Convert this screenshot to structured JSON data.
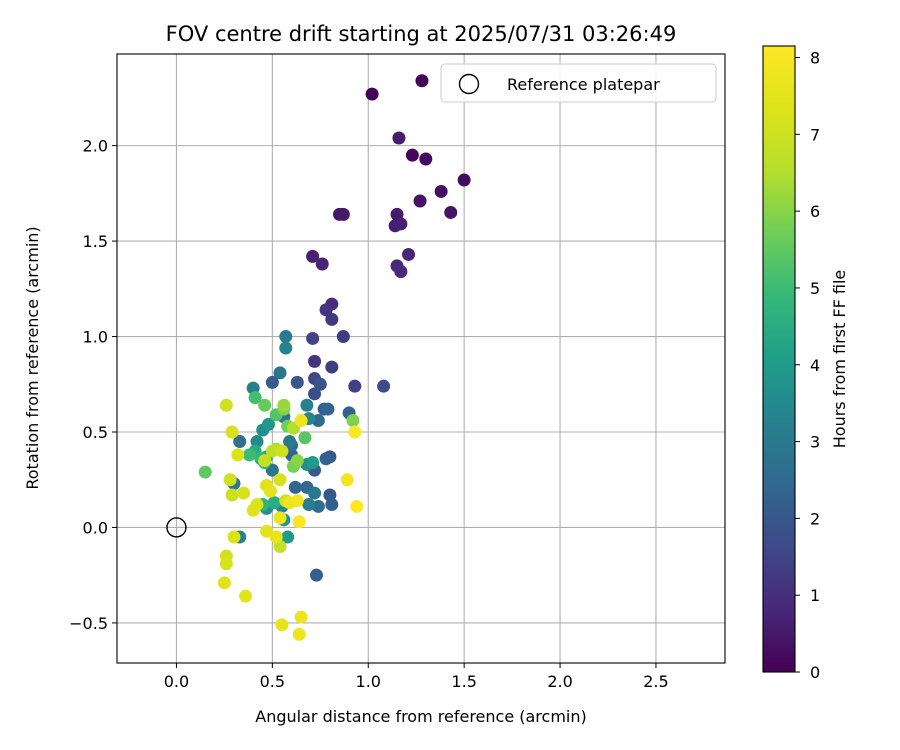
{
  "chart_data": {
    "type": "scatter",
    "title": "FOV centre drift starting at 2025/07/31 03:26:49",
    "xlabel": "Angular distance from reference (arcmin)",
    "ylabel": "Rotation from reference (arcmin)",
    "xlim": [
      -0.31,
      2.86
    ],
    "ylim": [
      -0.71,
      2.48
    ],
    "xticks": [
      0.0,
      0.5,
      1.0,
      1.5,
      2.0,
      2.5
    ],
    "xtick_labels": [
      "0.0",
      "0.5",
      "1.0",
      "1.5",
      "2.0",
      "2.5"
    ],
    "yticks": [
      -0.5,
      0.0,
      0.5,
      1.0,
      1.5,
      2.0
    ],
    "ytick_labels": [
      "−0.5",
      "0.0",
      "0.5",
      "1.0",
      "1.5",
      "2.0"
    ],
    "grid": true,
    "legend": {
      "placement": "top-right",
      "entries": [
        {
          "label": "Reference platepar",
          "marker": "open-circle"
        }
      ]
    },
    "reference_point": [
      0.0,
      0.0
    ],
    "colormap": "viridis",
    "colorbar": {
      "label": "Hours from first FF file",
      "range": [
        0,
        8.15
      ],
      "ticks": [
        0,
        1,
        2,
        3,
        4,
        5,
        6,
        7,
        8
      ],
      "tick_labels": [
        "0",
        "1",
        "2",
        "3",
        "4",
        "5",
        "6",
        "7",
        "8"
      ]
    },
    "points": [
      [
        1.02,
        2.27,
        0.05
      ],
      [
        1.28,
        2.34,
        0.1
      ],
      [
        1.16,
        2.04,
        0.6
      ],
      [
        1.23,
        1.95,
        0.15
      ],
      [
        1.3,
        1.93,
        0.2
      ],
      [
        1.5,
        1.82,
        0.25
      ],
      [
        1.38,
        1.76,
        0.3
      ],
      [
        1.27,
        1.71,
        0.35
      ],
      [
        1.43,
        1.65,
        0.4
      ],
      [
        0.85,
        1.64,
        0.45
      ],
      [
        0.87,
        1.64,
        0.5
      ],
      [
        1.15,
        1.64,
        0.55
      ],
      [
        1.14,
        1.58,
        0.6
      ],
      [
        1.17,
        1.59,
        0.65
      ],
      [
        0.71,
        1.42,
        0.7
      ],
      [
        0.76,
        1.38,
        0.75
      ],
      [
        1.21,
        1.43,
        0.8
      ],
      [
        1.15,
        1.37,
        0.85
      ],
      [
        1.17,
        1.34,
        0.9
      ],
      [
        0.81,
        1.17,
        1.0
      ],
      [
        0.78,
        1.14,
        1.1
      ],
      [
        0.81,
        1.09,
        1.2
      ],
      [
        0.87,
        1.0,
        1.3
      ],
      [
        0.71,
        0.99,
        1.5
      ],
      [
        0.72,
        0.87,
        1.1
      ],
      [
        0.81,
        0.84,
        1.3
      ],
      [
        0.72,
        0.78,
        1.6
      ],
      [
        0.93,
        0.74,
        1.4
      ],
      [
        1.08,
        0.74,
        1.7
      ],
      [
        0.75,
        0.75,
        1.9
      ],
      [
        0.72,
        0.7,
        1.8
      ],
      [
        0.63,
        0.76,
        2.0
      ],
      [
        0.5,
        0.76,
        2.1
      ],
      [
        0.54,
        0.81,
        2.8
      ],
      [
        0.57,
        1.0,
        3.0
      ],
      [
        0.57,
        0.94,
        3.3
      ],
      [
        0.4,
        0.73,
        3.1
      ],
      [
        0.77,
        0.62,
        2.2
      ],
      [
        0.79,
        0.62,
        2.4
      ],
      [
        0.9,
        0.6,
        2.3
      ],
      [
        0.74,
        0.56,
        2.5
      ],
      [
        0.68,
        0.64,
        3.2
      ],
      [
        0.69,
        0.57,
        3.4
      ],
      [
        0.56,
        0.58,
        2.9
      ],
      [
        0.59,
        0.45,
        3.0
      ],
      [
        0.33,
        0.45,
        2.7
      ],
      [
        0.42,
        0.45,
        3.5
      ],
      [
        0.45,
        0.51,
        3.7
      ],
      [
        0.48,
        0.54,
        3.9
      ],
      [
        0.6,
        0.43,
        2.6
      ],
      [
        0.8,
        0.37,
        2.0
      ],
      [
        0.78,
        0.36,
        2.2
      ],
      [
        0.72,
        0.3,
        2.1
      ],
      [
        0.6,
        0.38,
        2.3
      ],
      [
        0.71,
        0.34,
        4.0
      ],
      [
        0.68,
        0.33,
        3.6
      ],
      [
        0.5,
        0.3,
        2.8
      ],
      [
        0.68,
        0.21,
        2.5
      ],
      [
        0.62,
        0.21,
        2.4
      ],
      [
        0.72,
        0.18,
        3.0
      ],
      [
        0.8,
        0.17,
        2.0
      ],
      [
        0.81,
        0.12,
        2.2
      ],
      [
        0.74,
        0.11,
        2.6
      ],
      [
        0.69,
        0.12,
        3.1
      ],
      [
        0.55,
        0.11,
        3.4
      ],
      [
        0.47,
        0.1,
        3.7
      ],
      [
        0.3,
        0.23,
        2.9
      ],
      [
        0.33,
        -0.05,
        3.2
      ],
      [
        0.73,
        -0.25,
        2.2
      ],
      [
        0.58,
        -0.05,
        4.0
      ],
      [
        0.56,
        0.04,
        3.8
      ],
      [
        0.51,
        0.13,
        4.5
      ],
      [
        0.45,
        0.12,
        4.7
      ],
      [
        0.46,
        0.34,
        4.6
      ],
      [
        0.47,
        0.37,
        4.4
      ],
      [
        0.41,
        0.4,
        4.5
      ],
      [
        0.44,
        0.36,
        4.8
      ],
      [
        0.38,
        0.38,
        5.0
      ],
      [
        0.41,
        0.68,
        5.1
      ],
      [
        0.46,
        0.64,
        5.6
      ],
      [
        0.52,
        0.59,
        5.3
      ],
      [
        0.56,
        0.62,
        5.9
      ],
      [
        0.56,
        0.64,
        6.2
      ],
      [
        0.58,
        0.53,
        5.7
      ],
      [
        0.61,
        0.52,
        6.5
      ],
      [
        0.67,
        0.47,
        5.4
      ],
      [
        0.15,
        0.29,
        5.5
      ],
      [
        0.61,
        0.32,
        5.8
      ],
      [
        0.63,
        0.35,
        6.0
      ],
      [
        0.52,
        0.41,
        6.4
      ],
      [
        0.5,
        0.4,
        6.7
      ],
      [
        0.46,
        0.35,
        6.9
      ],
      [
        0.55,
        0.4,
        7.0
      ],
      [
        0.92,
        0.56,
        5.9
      ],
      [
        0.26,
        0.64,
        7.1
      ],
      [
        0.29,
        0.5,
        7.2
      ],
      [
        0.32,
        0.38,
        7.3
      ],
      [
        0.47,
        0.22,
        7.4
      ],
      [
        0.49,
        0.19,
        7.5
      ],
      [
        0.54,
        0.25,
        7.2
      ],
      [
        0.57,
        0.14,
        7.1
      ],
      [
        0.28,
        0.25,
        7.0
      ],
      [
        0.29,
        0.17,
        6.9
      ],
      [
        0.35,
        0.18,
        7.2
      ],
      [
        0.42,
        0.12,
        7.3
      ],
      [
        0.4,
        0.09,
        7.4
      ],
      [
        0.47,
        -0.02,
        7.5
      ],
      [
        0.52,
        -0.05,
        7.6
      ],
      [
        0.54,
        -0.1,
        6.8
      ],
      [
        0.3,
        -0.05,
        7.3
      ],
      [
        0.26,
        -0.15,
        7.1
      ],
      [
        0.26,
        -0.19,
        7.2
      ],
      [
        0.25,
        -0.29,
        7.4
      ],
      [
        0.36,
        -0.36,
        7.5
      ],
      [
        0.54,
        0.05,
        7.7
      ],
      [
        0.59,
        0.13,
        7.8
      ],
      [
        0.63,
        0.14,
        7.9
      ],
      [
        0.64,
        0.03,
        8.0
      ],
      [
        0.65,
        0.56,
        7.8
      ],
      [
        0.93,
        0.5,
        8.1
      ],
      [
        0.89,
        0.25,
        7.9
      ],
      [
        0.94,
        0.11,
        8.1
      ],
      [
        0.55,
        -0.51,
        7.6
      ],
      [
        0.65,
        -0.47,
        7.7
      ],
      [
        0.64,
        -0.56,
        7.8
      ]
    ]
  }
}
